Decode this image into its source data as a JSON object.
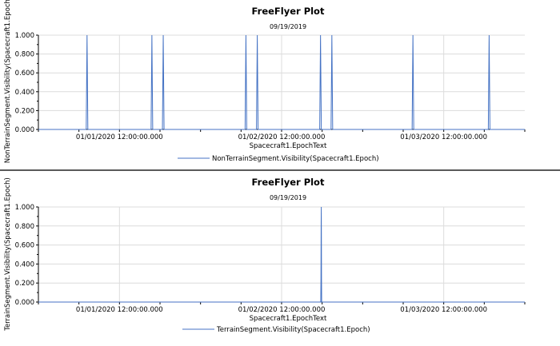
{
  "chart_data": [
    {
      "type": "line",
      "title": "FreeFlyer Plot",
      "subtitle": "09/19/2019",
      "xlabel": "Spacecraft1.EpochText",
      "ylabel": "NonTerrainSegment.Visibility(Spacecraft1.Epoch)",
      "ylim": [
        0,
        1
      ],
      "y_ticks": [
        "0.000",
        "0.200",
        "0.400",
        "0.600",
        "0.800",
        "1.000"
      ],
      "x_ticks": [
        "01/01/2020 12:00:00.000",
        "01/02/2020 12:00:00.000",
        "01/03/2020 12:00:00.000"
      ],
      "x_tick_days": [
        0.5,
        1.5,
        2.5
      ],
      "xlim_days": [
        0,
        3.0
      ],
      "grid": true,
      "legend": "bottom-center",
      "series": [
        {
          "name": "NonTerrainSegment.Visibility(Spacecraft1.Epoch)",
          "color": "#4472c4",
          "points": [
            [
              0,
              0
            ],
            [
              0.295,
              0
            ],
            [
              0.3,
              1
            ],
            [
              0.305,
              0
            ],
            [
              0.695,
              0
            ],
            [
              0.7,
              1
            ],
            [
              0.705,
              0
            ],
            [
              0.765,
              0
            ],
            [
              0.77,
              1
            ],
            [
              0.775,
              0
            ],
            [
              1.275,
              0
            ],
            [
              1.28,
              1
            ],
            [
              1.285,
              0
            ],
            [
              1.345,
              0
            ],
            [
              1.35,
              1
            ],
            [
              1.355,
              0
            ],
            [
              1.735,
              0
            ],
            [
              1.74,
              1
            ],
            [
              1.745,
              0
            ],
            [
              1.805,
              0
            ],
            [
              1.81,
              1
            ],
            [
              1.815,
              0
            ],
            [
              2.305,
              0
            ],
            [
              2.31,
              1
            ],
            [
              2.315,
              0
            ],
            [
              2.775,
              0
            ],
            [
              2.78,
              1
            ],
            [
              2.785,
              0
            ],
            [
              3.0,
              0
            ]
          ]
        }
      ]
    },
    {
      "type": "line",
      "title": "FreeFlyer Plot",
      "subtitle": "09/19/2019",
      "xlabel": "Spacecraft1.EpochText",
      "ylabel": "TerrainSegment.Visibility(Spacecraft1.Epoch)",
      "ylim": [
        0,
        1
      ],
      "y_ticks": [
        "0.000",
        "0.200",
        "0.400",
        "0.600",
        "0.800",
        "1.000"
      ],
      "x_ticks": [
        "01/01/2020 12:00:00.000",
        "01/02/2020 12:00:00.000",
        "01/03/2020 12:00:00.000"
      ],
      "x_tick_days": [
        0.5,
        1.5,
        2.5
      ],
      "xlim_days": [
        0,
        3.0
      ],
      "grid": true,
      "legend": "bottom-center",
      "series": [
        {
          "name": "TerrainSegment.Visibility(Spacecraft1.Epoch)",
          "color": "#4472c4",
          "points": [
            [
              0,
              0
            ],
            [
              1.7415,
              0
            ],
            [
              1.7428,
              0.25
            ],
            [
              1.744,
              0.83
            ],
            [
              1.7448,
              1.0
            ],
            [
              1.7455,
              0.7
            ],
            [
              1.7462,
              0.25
            ],
            [
              1.7472,
              0
            ],
            [
              3.0,
              0
            ]
          ]
        }
      ]
    }
  ]
}
